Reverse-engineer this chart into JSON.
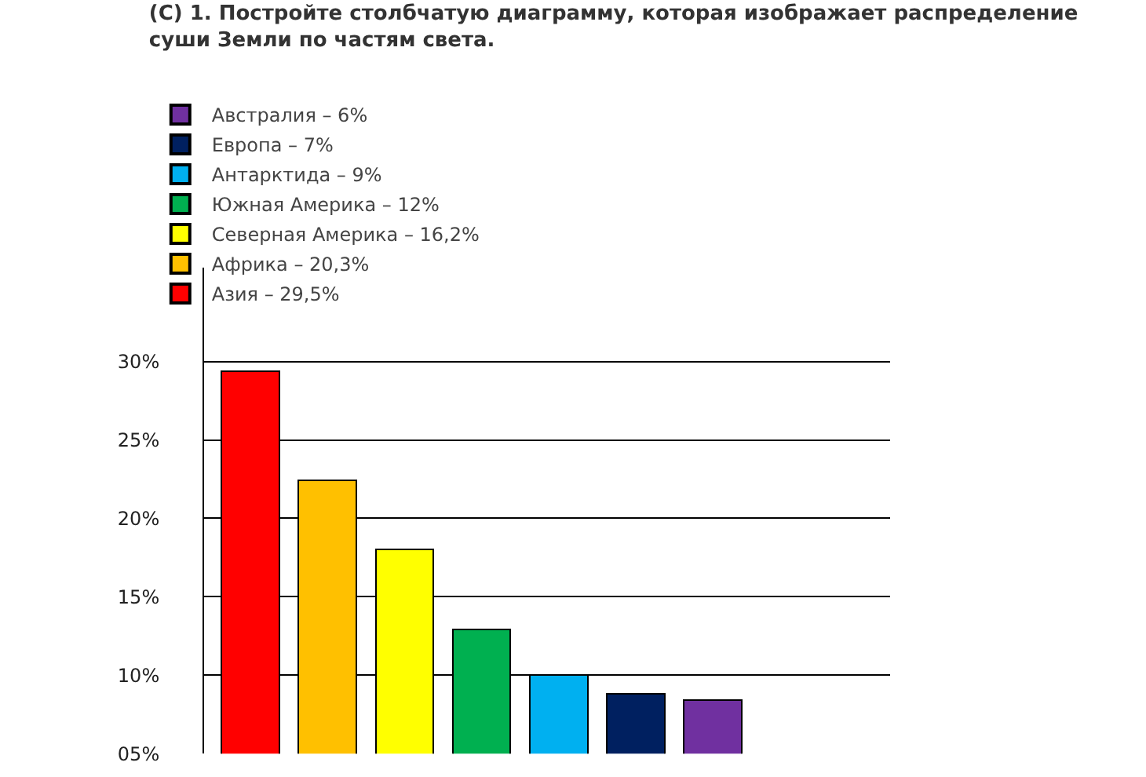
{
  "chart_data": {
    "type": "bar",
    "title": "(С) 1. Постройте столбчатую диаграмму, которая изображает распределение суши Земли по частям света.",
    "categories": [
      null,
      null,
      null,
      null,
      null,
      null,
      null
    ],
    "series": [
      {
        "name": "Азия – 29,5%",
        "color": "#ff0000",
        "values": [
          29.4,
          null,
          null,
          null,
          null,
          null,
          null
        ]
      },
      {
        "name": "Африка – 20,3%",
        "color": "#ffc000",
        "values": [
          null,
          22.4,
          null,
          null,
          null,
          null,
          null
        ]
      },
      {
        "name": "Северная Америка – 16,2%",
        "color": "#ffff00",
        "values": [
          null,
          null,
          18.0,
          null,
          null,
          null,
          null
        ]
      },
      {
        "name": "Южная Америка – 12%",
        "color": "#00b050",
        "values": [
          null,
          null,
          null,
          12.9,
          null,
          null,
          null
        ]
      },
      {
        "name": "Антарктида – 9%",
        "color": "#00b0f0",
        "values": [
          null,
          null,
          null,
          null,
          10.0,
          null,
          null
        ]
      },
      {
        "name": "Европа – 7%",
        "color": "#002060",
        "values": [
          null,
          null,
          null,
          null,
          null,
          8.8,
          null
        ]
      },
      {
        "name": "Австралия – 6%",
        "color": "#7030a0",
        "values": [
          null,
          null,
          null,
          null,
          null,
          null,
          8.4
        ]
      }
    ],
    "ylim": [
      5,
      36
    ],
    "yticks": [
      {
        "value": 5,
        "label": "05%"
      },
      {
        "value": 10,
        "label": "10%"
      },
      {
        "value": 15,
        "label": "15%"
      },
      {
        "value": 20,
        "label": "20%"
      },
      {
        "value": 25,
        "label": "25%"
      },
      {
        "value": 30,
        "label": "30%"
      }
    ],
    "stacked": true,
    "grid": "y",
    "legend": "top left",
    "tick_labels": "y"
  }
}
